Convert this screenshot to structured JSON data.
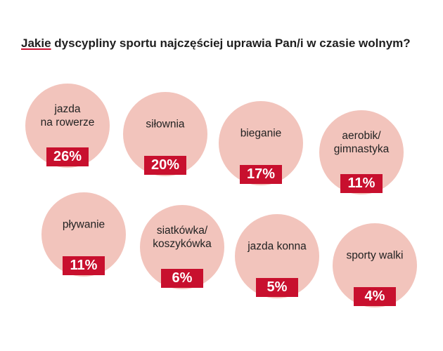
{
  "chart_data": {
    "type": "bubble-grid",
    "title_underlined": "Jakie",
    "title_rest": " dyscypliny sportu najczęściej uprawia Pan/i w czasie wolnym?",
    "unit": "%",
    "items": [
      {
        "label": "jazda\nna rowerze",
        "value": 26,
        "value_label": "26%"
      },
      {
        "label": "siłownia",
        "value": 20,
        "value_label": "20%"
      },
      {
        "label": "bieganie",
        "value": 17,
        "value_label": "17%"
      },
      {
        "label": "aerobik/\ngimnastyka",
        "value": 11,
        "value_label": "11%"
      },
      {
        "label": "pływanie",
        "value": 11,
        "value_label": "11%"
      },
      {
        "label": "siatkówka/\nkoszykówka",
        "value": 6,
        "value_label": "6%"
      },
      {
        "label": "jazda konna",
        "value": 5,
        "value_label": "5%"
      },
      {
        "label": "sporty walki",
        "value": 4,
        "value_label": "4%"
      }
    ],
    "colors": {
      "bubble": "#f2c4bc",
      "badge": "#c8102e",
      "accent_underline": "#c8102e",
      "text": "#222222"
    }
  }
}
